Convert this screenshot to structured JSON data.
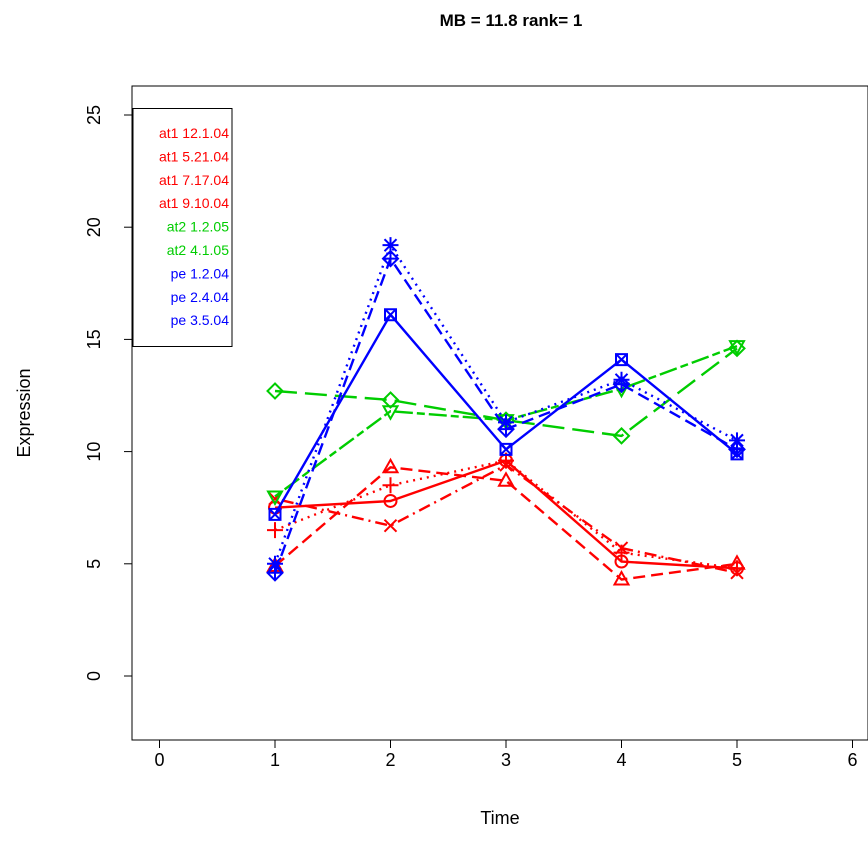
{
  "chart_data": {
    "type": "line",
    "title": "MB = 11.8  rank= 1",
    "xlabel": "Time",
    "ylabel": "Expression",
    "xlim": [
      -0.25,
      6.25
    ],
    "ylim": [
      -2.8,
      26.0
    ],
    "xticks": [
      0,
      1,
      2,
      3,
      4,
      5,
      6
    ],
    "yticks": [
      0,
      5,
      10,
      15,
      20,
      25
    ],
    "grid": false,
    "legend_position": "top-left",
    "legend_entries": [
      "at1 12.1.04",
      "at1 5.21.04",
      "at1 7.17.04",
      "at1 9.10.04",
      "at2 1.2.05",
      "at2 4.1.05",
      "pe 1.2.04",
      "pe 2.4.04",
      "pe 3.5.04"
    ],
    "series": [
      {
        "name": "at1 12.1.04",
        "color": "#ff0000",
        "dash": "solid",
        "marker": "circle",
        "x": [
          1,
          2,
          3,
          4,
          5
        ],
        "y": [
          7.5,
          7.8,
          9.6,
          5.1,
          4.8
        ]
      },
      {
        "name": "at1 5.21.04",
        "color": "#ff0000",
        "dash": "dashed",
        "marker": "triangle",
        "x": [
          1,
          2,
          3,
          4,
          5
        ],
        "y": [
          4.9,
          9.3,
          8.7,
          4.3,
          5.0
        ]
      },
      {
        "name": "at1 7.17.04",
        "color": "#ff0000",
        "dash": "dotted",
        "marker": "plus",
        "x": [
          1,
          2,
          3,
          4,
          5
        ],
        "y": [
          6.5,
          8.5,
          9.6,
          5.5,
          4.8
        ]
      },
      {
        "name": "at1 9.10.04",
        "color": "#ff0000",
        "dash": "dotdash",
        "marker": "cross",
        "x": [
          1,
          2,
          3,
          4,
          5
        ],
        "y": [
          7.9,
          6.7,
          9.4,
          5.7,
          4.6
        ]
      },
      {
        "name": "at2 1.2.05",
        "color": "#00cd00",
        "dash": "longdash",
        "marker": "diamond",
        "x": [
          1,
          2,
          3,
          4,
          5
        ],
        "y": [
          12.7,
          12.3,
          11.4,
          10.7,
          14.6
        ]
      },
      {
        "name": "at2 4.1.05",
        "color": "#00cd00",
        "dash": "twodash",
        "marker": "triangle-down",
        "x": [
          1,
          2,
          3,
          4,
          5
        ],
        "y": [
          8.0,
          11.8,
          11.4,
          12.8,
          14.7
        ]
      },
      {
        "name": "pe 1.2.04",
        "color": "#0000ff",
        "dash": "solid",
        "marker": "square-x",
        "x": [
          1,
          2,
          3,
          4,
          5
        ],
        "y": [
          7.2,
          16.1,
          10.1,
          14.1,
          9.9
        ]
      },
      {
        "name": "pe 2.4.04",
        "color": "#0000ff",
        "dash": "dashed",
        "marker": "diamond-plus",
        "x": [
          1,
          2,
          3,
          4,
          5
        ],
        "y": [
          4.6,
          18.6,
          11.0,
          13.0,
          10.1
        ]
      },
      {
        "name": "pe 3.5.04",
        "color": "#0000ff",
        "dash": "dotted",
        "marker": "asterisk",
        "x": [
          1,
          2,
          3,
          4,
          5
        ],
        "y": [
          5.0,
          19.2,
          11.3,
          13.2,
          10.5
        ]
      }
    ]
  }
}
